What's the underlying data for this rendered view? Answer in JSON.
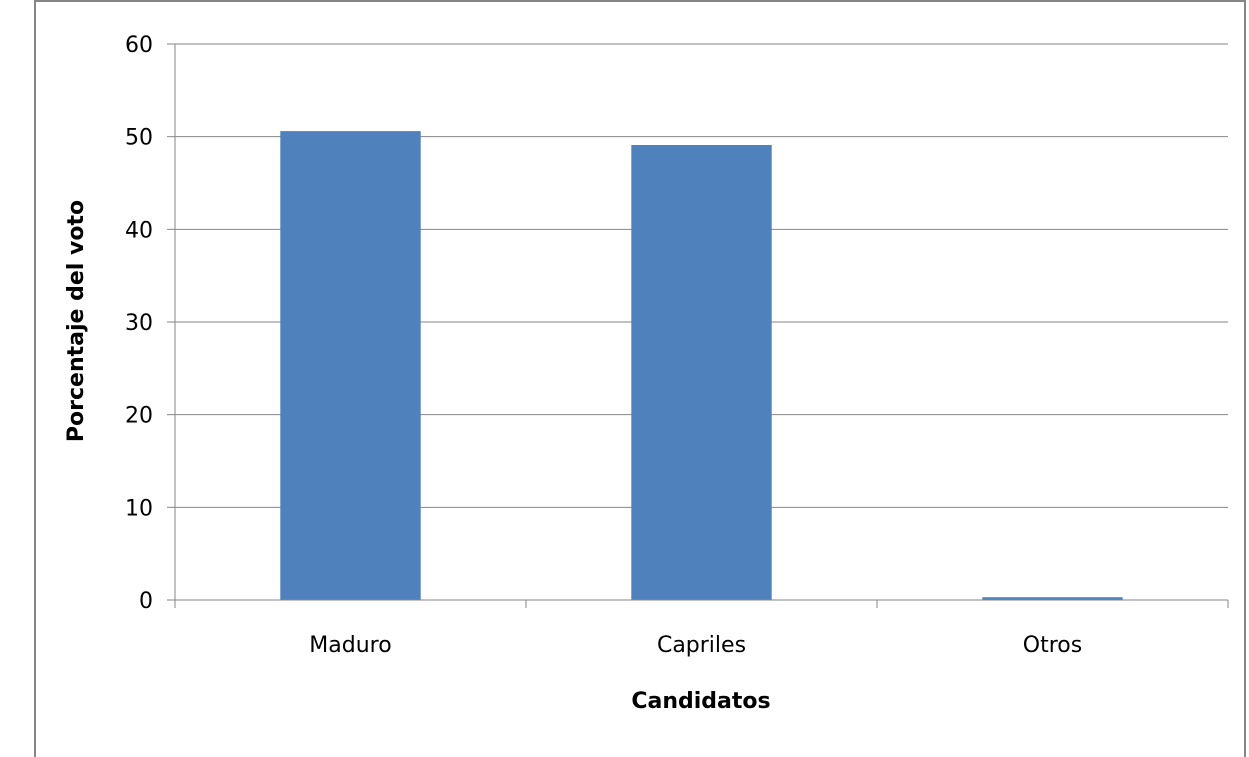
{
  "chart_data": {
    "type": "bar",
    "categories": [
      "Maduro",
      "Capriles",
      "Otros"
    ],
    "values": [
      50.6,
      49.1,
      0.3
    ],
    "title": "",
    "xlabel": "Candidatos",
    "ylabel": "Porcentaje del voto",
    "ylim": [
      0,
      60
    ],
    "yticks": [
      0,
      10,
      20,
      30,
      40,
      50,
      60
    ],
    "grid": true,
    "legend": "none",
    "colors": {
      "bar": "#4F81BD",
      "grid": "#868686",
      "frame": "#868686"
    }
  }
}
